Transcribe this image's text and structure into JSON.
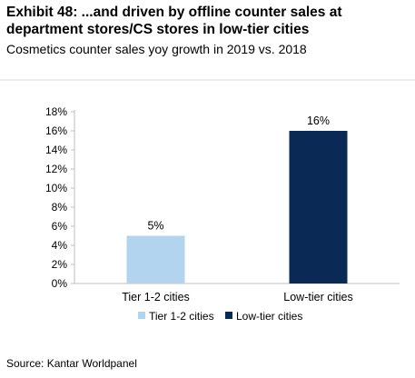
{
  "header": {
    "title": "Exhibit 48: ...and driven by offline counter sales at department stores/CS stores in low-tier cities",
    "subtitle": "Cosmetics counter sales yoy growth in 2019 vs. 2018"
  },
  "footer": {
    "source": "Source: Kantar Worldpanel"
  },
  "colors": {
    "tier12": "#b3d4ef",
    "lowtier": "#0a2a55",
    "axis": "#bfbfbf",
    "text": "#000000"
  },
  "chart_data": {
    "type": "bar",
    "title": "",
    "categories": [
      "Tier 1-2 cities",
      "Low-tier cities"
    ],
    "values": [
      5,
      16
    ],
    "data_labels": [
      "5%",
      "16%"
    ],
    "unit": "%",
    "ylim": [
      0,
      18
    ],
    "yticks": [
      0,
      2,
      4,
      6,
      8,
      10,
      12,
      14,
      16,
      18
    ],
    "ytick_labels": [
      "0%",
      "2%",
      "4%",
      "6%",
      "8%",
      "10%",
      "12%",
      "14%",
      "16%",
      "18%"
    ],
    "grid": false,
    "legend": {
      "position": "bottom",
      "entries": [
        "Tier 1-2 cities",
        "Low-tier cities"
      ]
    },
    "xlabel": "",
    "ylabel": ""
  }
}
